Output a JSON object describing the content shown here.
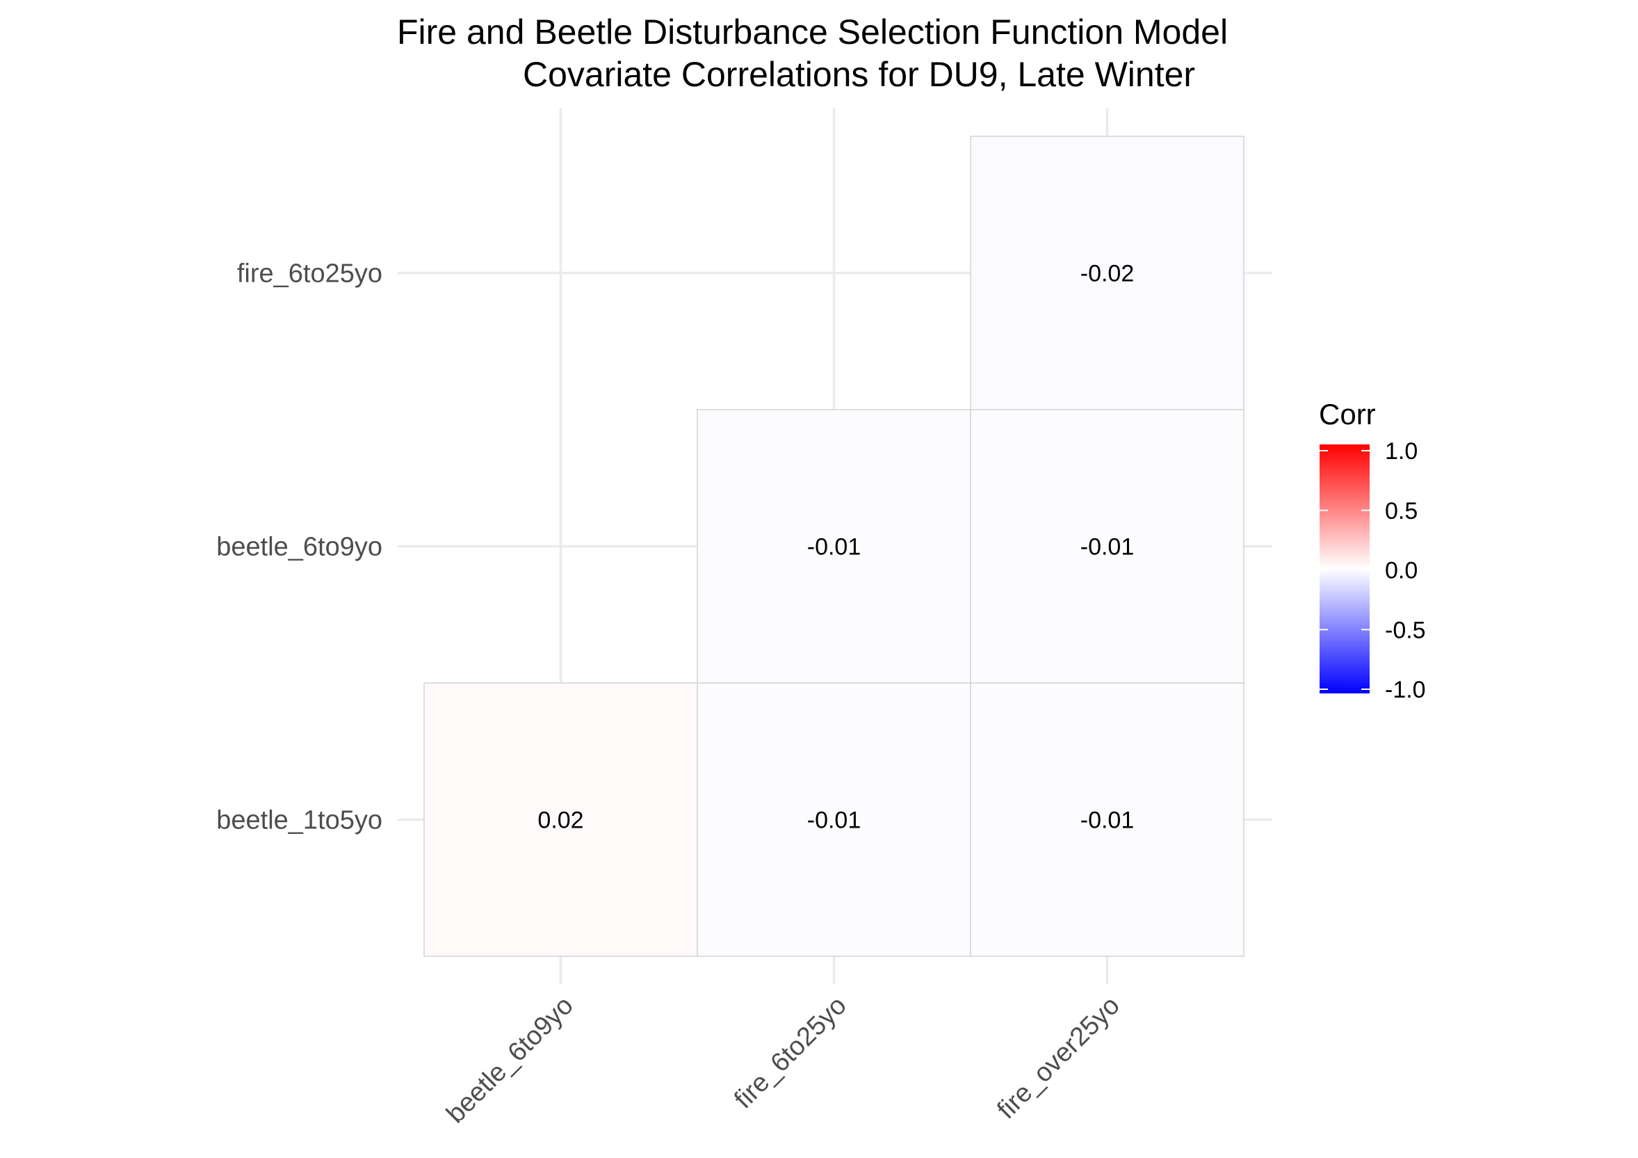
{
  "chart_data": {
    "type": "heatmap",
    "title_lines": [
      "Fire and Beetle Disturbance Selection Function Model",
      "Covariate Correlations for DU9, Late Winter"
    ],
    "xlabel": "",
    "ylabel": "",
    "x_categories": [
      "beetle_6to9yo",
      "fire_6to25yo",
      "fire_over25yo"
    ],
    "y_categories": [
      "beetle_1to5yo",
      "beetle_6to9yo",
      "fire_6to25yo"
    ],
    "cells": [
      {
        "x": "beetle_6to9yo",
        "y": "beetle_1to5yo",
        "value": 0.02,
        "label": "0.02"
      },
      {
        "x": "fire_6to25yo",
        "y": "beetle_1to5yo",
        "value": -0.01,
        "label": "-0.01"
      },
      {
        "x": "fire_over25yo",
        "y": "beetle_1to5yo",
        "value": -0.01,
        "label": "-0.01"
      },
      {
        "x": "fire_6to25yo",
        "y": "beetle_6to9yo",
        "value": -0.01,
        "label": "-0.01"
      },
      {
        "x": "fire_over25yo",
        "y": "beetle_6to9yo",
        "value": -0.01,
        "label": "-0.01"
      },
      {
        "x": "fire_over25yo",
        "y": "fire_6to25yo",
        "value": -0.02,
        "label": "-0.02"
      }
    ],
    "legend": {
      "title": "Corr",
      "position": "right",
      "range": [
        -1,
        1
      ],
      "ticks": [
        1.0,
        0.5,
        0.0,
        -0.5,
        -1.0
      ],
      "tick_labels": [
        "1.0",
        "0.5",
        "0.0",
        "-0.5",
        "-1.0"
      ]
    },
    "colors": {
      "low": "#0000ff",
      "mid": "#ffffff",
      "high": "#ff0000",
      "grid": "#ebebeb",
      "cell_border": "#d3d3d3",
      "tick_text": "#4d4d4d"
    },
    "grid": true
  }
}
